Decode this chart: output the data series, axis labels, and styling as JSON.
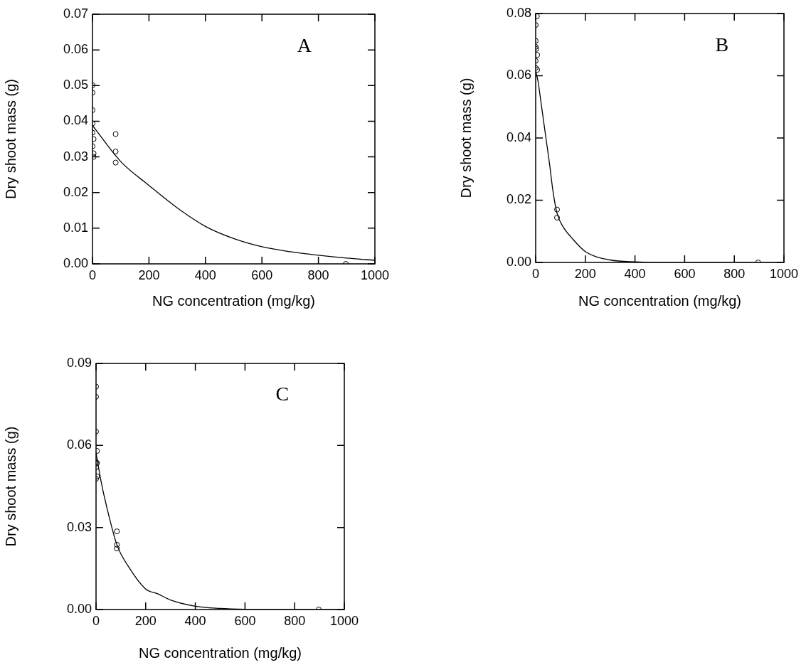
{
  "chart_data": [
    {
      "type": "scatter",
      "xlabel": "NG concentration (mg/kg)",
      "ylabel": "Dry shoot mass (g)",
      "annotations": [
        "A"
      ],
      "marker": "circle",
      "grid": false,
      "legend": false,
      "xlim": [
        0,
        1000
      ],
      "xticks": [
        0,
        200,
        400,
        600,
        800,
        1000
      ],
      "ylim": [
        0,
        0.07
      ],
      "yticks": [
        {
          "value": 0,
          "label": "0.00"
        },
        {
          "value": 0.01,
          "label": "0.01"
        },
        {
          "value": 0.02,
          "label": "0.02"
        },
        {
          "value": 0.03,
          "label": "0.03"
        },
        {
          "value": 0.04,
          "label": "0.04"
        },
        {
          "value": 0.05,
          "label": "0.05"
        },
        {
          "value": 0.06,
          "label": "0.06"
        },
        {
          "value": 0.07,
          "label": "0.07"
        }
      ],
      "series": [
        {
          "type": "scatter",
          "color": "#000000",
          "x": [
            0,
            0,
            0,
            0,
            0,
            4,
            0,
            4,
            4,
            82,
            82,
            82,
            897
          ],
          "values": [
            0.0501,
            0.048,
            0.0431,
            0.0394,
            0.0368,
            0.035,
            0.033,
            0.031,
            0.03,
            0.0364,
            0.0315,
            0.0284,
            0
          ]
        },
        {
          "type": "line",
          "color": "#000000",
          "marker": "none",
          "x": [
            0,
            100,
            200,
            300,
            400,
            500,
            600,
            700,
            800,
            900,
            1000
          ],
          "values": [
            0.0388,
            0.0287,
            0.022,
            0.0157,
            0.0105,
            0.0071,
            0.0048,
            0.0034,
            0.0024,
            0.0016,
            0.001
          ]
        }
      ]
    },
    {
      "type": "scatter",
      "xlabel": "NG concentration (mg/kg)",
      "ylabel": "Dry shoot mass (g)",
      "annotations": [
        "B"
      ],
      "marker": "circle",
      "grid": false,
      "legend": false,
      "xlim": [
        0,
        1000
      ],
      "xticks": [
        0,
        200,
        400,
        600,
        800,
        1000
      ],
      "ylim": [
        0,
        0.08
      ],
      "yticks": [
        {
          "value": 0,
          "label": "0.00"
        },
        {
          "value": 0.02,
          "label": "0.02"
        },
        {
          "value": 0.04,
          "label": "0.04"
        },
        {
          "value": 0.06,
          "label": "0.06"
        },
        {
          "value": 0.08,
          "label": "0.08"
        }
      ],
      "series": [
        {
          "type": "scatter",
          "color": "#000000",
          "x": [
            5,
            0,
            0,
            0,
            2,
            6,
            0,
            0,
            6,
            86,
            86,
            896
          ],
          "values": [
            0.0791,
            0.0763,
            0.0712,
            0.0693,
            0.0686,
            0.0667,
            0.0648,
            0.0625,
            0.0619,
            0.017,
            0.0144,
            0
          ]
        },
        {
          "type": "line",
          "color": "#000000",
          "marker": "none",
          "x": [
            0,
            10,
            20,
            38,
            57,
            69,
            86,
            110,
            143,
            200,
            300,
            400,
            600,
            1000
          ],
          "values": [
            0.0615,
            0.058,
            0.0523,
            0.0419,
            0.031,
            0.0233,
            0.0158,
            0.0115,
            0.0081,
            0.0035,
            0.0008,
            0.0002,
            0,
            0
          ]
        }
      ]
    },
    {
      "type": "scatter",
      "xlabel": "NG concentration (mg/kg)",
      "ylabel": "Dry shoot mass (g)",
      "annotations": [
        "C"
      ],
      "marker": "circle",
      "grid": false,
      "legend": false,
      "xlim": [
        0,
        1000
      ],
      "xticks": [
        0,
        200,
        400,
        600,
        800,
        1000
      ],
      "ylim": [
        0,
        0.09
      ],
      "yticks": [
        {
          "value": 0,
          "label": "0.00"
        },
        {
          "value": 0.03,
          "label": "0.03"
        },
        {
          "value": 0.06,
          "label": "0.06"
        },
        {
          "value": 0.09,
          "label": "0.09"
        }
      ],
      "series": [
        {
          "type": "scatter",
          "color": "#000000",
          "x": [
            0,
            0,
            0,
            4,
            0,
            4,
            0,
            4,
            0,
            84,
            84,
            84,
            897
          ],
          "values": [
            0.0815,
            0.0778,
            0.0651,
            0.058,
            0.0538,
            0.0536,
            0.052,
            0.0487,
            0.0478,
            0.0286,
            0.0237,
            0.0223,
            0
          ]
        },
        {
          "type": "line",
          "color": "#000000",
          "marker": "none",
          "x": [
            0,
            20,
            41,
            84,
            135,
            200,
            247,
            300,
            400,
            500,
            600,
            800,
            1000
          ],
          "values": [
            0.0573,
            0.047,
            0.0383,
            0.0237,
            0.0151,
            0.0075,
            0.0058,
            0.0035,
            0.0012,
            0.0004,
            0.0001,
            0,
            0
          ]
        }
      ]
    }
  ]
}
